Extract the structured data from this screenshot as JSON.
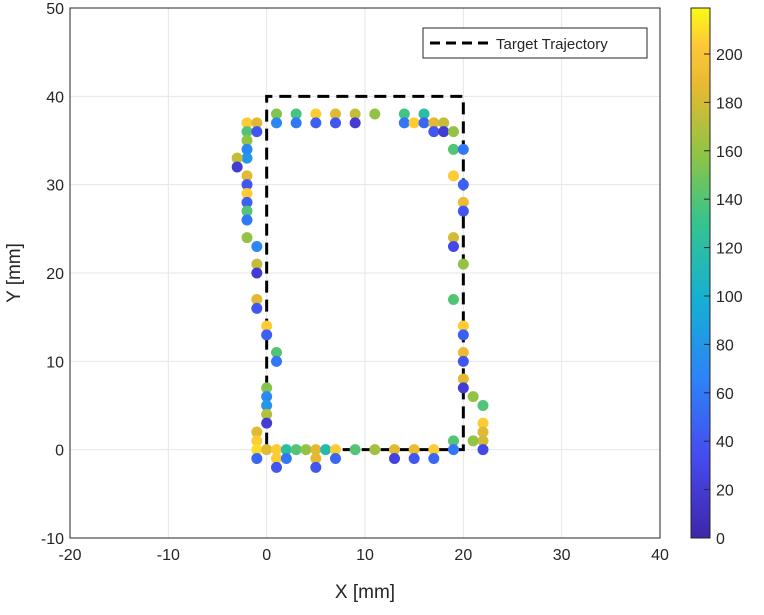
{
  "chart_data": {
    "type": "scatter",
    "xlabel": "X [mm]",
    "ylabel": "Y [mm]",
    "xlim": [
      -20,
      40
    ],
    "ylim": [
      -10,
      50
    ],
    "xticks": [
      -20,
      -10,
      0,
      10,
      20,
      30,
      40
    ],
    "yticks": [
      -10,
      0,
      10,
      20,
      30,
      40,
      50
    ],
    "grid": true,
    "legend": {
      "placement": "top-right",
      "entries": [
        "Target Trajectory"
      ]
    },
    "target_trajectory": {
      "x": [
        0,
        20,
        20,
        0,
        0
      ],
      "y": [
        0,
        0,
        40,
        40,
        0
      ],
      "style": "dashed",
      "color": "#000000"
    },
    "colormap": "parula",
    "colorbar": {
      "clim": [
        0,
        219
      ],
      "ticks": [
        0,
        20,
        40,
        60,
        80,
        100,
        120,
        140,
        160,
        180,
        200
      ]
    },
    "points": [
      [
        1,
        38,
        155
      ],
      [
        1,
        37,
        70
      ],
      [
        3,
        38,
        135
      ],
      [
        3,
        37,
        60
      ],
      [
        5,
        38,
        205
      ],
      [
        5,
        37,
        45
      ],
      [
        7,
        38,
        185
      ],
      [
        7,
        37,
        40
      ],
      [
        9,
        38,
        175
      ],
      [
        9,
        37,
        20
      ],
      [
        11,
        38,
        160
      ],
      [
        14,
        38,
        135
      ],
      [
        14,
        37,
        60
      ],
      [
        15,
        37,
        205
      ],
      [
        16,
        38,
        120
      ],
      [
        16,
        37,
        50
      ],
      [
        17,
        37,
        185
      ],
      [
        17,
        36,
        40
      ],
      [
        18,
        37,
        175
      ],
      [
        18,
        36,
        20
      ],
      [
        19,
        36,
        160
      ],
      [
        19,
        34,
        140
      ],
      [
        20,
        34,
        60
      ],
      [
        19,
        31,
        205
      ],
      [
        20,
        30,
        45
      ],
      [
        20,
        28,
        190
      ],
      [
        20,
        27,
        40
      ],
      [
        19,
        24,
        180
      ],
      [
        19,
        23,
        30
      ],
      [
        20,
        21,
        160
      ],
      [
        19,
        17,
        140
      ],
      [
        20,
        14,
        205
      ],
      [
        20,
        13,
        45
      ],
      [
        20,
        11,
        190
      ],
      [
        20,
        10,
        40
      ],
      [
        20,
        8,
        185
      ],
      [
        20,
        7,
        20
      ],
      [
        21,
        6,
        160
      ],
      [
        22,
        5,
        140
      ],
      [
        22,
        3,
        205
      ],
      [
        22,
        2,
        185
      ],
      [
        22,
        1,
        180
      ],
      [
        21,
        1,
        160
      ],
      [
        22,
        0,
        30
      ],
      [
        19,
        1,
        140
      ],
      [
        19,
        0,
        60
      ],
      [
        -2,
        37,
        205
      ],
      [
        -1,
        37,
        185
      ],
      [
        -2,
        36,
        140
      ],
      [
        -1,
        36,
        40
      ],
      [
        -2,
        35,
        160
      ],
      [
        -2,
        34,
        70
      ],
      [
        -2,
        33,
        80
      ],
      [
        -3,
        33,
        175
      ],
      [
        -3,
        32,
        20
      ],
      [
        -2,
        31,
        185
      ],
      [
        -2,
        30,
        40
      ],
      [
        -2,
        29,
        205
      ],
      [
        -2,
        28,
        45
      ],
      [
        -2,
        27,
        140
      ],
      [
        -2,
        26,
        60
      ],
      [
        -2,
        24,
        160
      ],
      [
        -1,
        23,
        70
      ],
      [
        -1,
        21,
        175
      ],
      [
        -1,
        20,
        20
      ],
      [
        -1,
        17,
        185
      ],
      [
        -1,
        16,
        40
      ],
      [
        0,
        14,
        205
      ],
      [
        0,
        13,
        45
      ],
      [
        1,
        11,
        140
      ],
      [
        1,
        10,
        60
      ],
      [
        0,
        7,
        155
      ],
      [
        0,
        6,
        70
      ],
      [
        0,
        5,
        80
      ],
      [
        0,
        4,
        170
      ],
      [
        0,
        3,
        20
      ],
      [
        -1,
        2,
        185
      ],
      [
        -1,
        1,
        205
      ],
      [
        -1,
        0,
        210
      ],
      [
        -1,
        -1,
        50
      ],
      [
        0,
        0,
        185
      ],
      [
        1,
        0,
        205
      ],
      [
        1,
        -1,
        205
      ],
      [
        1,
        -2,
        40
      ],
      [
        2,
        0,
        120
      ],
      [
        2,
        -1,
        60
      ],
      [
        3,
        0,
        140
      ],
      [
        4,
        0,
        160
      ],
      [
        5,
        0,
        185
      ],
      [
        5,
        -1,
        185
      ],
      [
        5,
        -2,
        40
      ],
      [
        6,
        0,
        115
      ],
      [
        7,
        0,
        205
      ],
      [
        7,
        -1,
        50
      ],
      [
        9,
        0,
        140
      ],
      [
        11,
        0,
        165
      ],
      [
        13,
        0,
        185
      ],
      [
        13,
        -1,
        25
      ],
      [
        15,
        0,
        190
      ],
      [
        15,
        -1,
        40
      ],
      [
        17,
        0,
        205
      ],
      [
        17,
        -1,
        50
      ]
    ]
  }
}
